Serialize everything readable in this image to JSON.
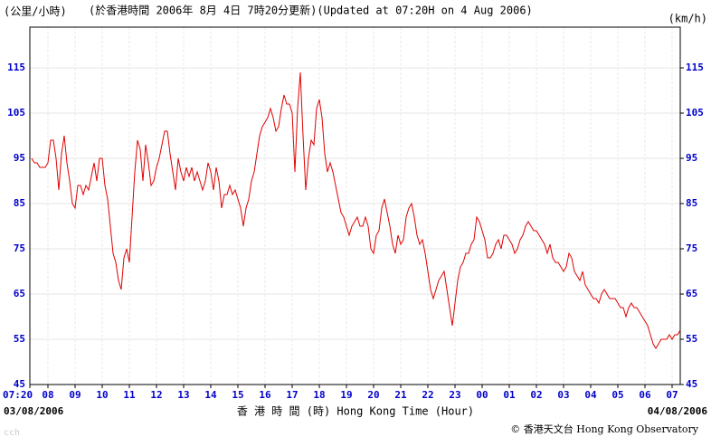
{
  "chart_data": {
    "type": "line",
    "unit_left": "(公里/小時)",
    "title": "(於香港時間 2006年 8月 4日 7時20分更新)(Updated at 07:20H on 4 Aug 2006)",
    "unit_right": "(km/h)",
    "x_label": "香 港 時 間 (時)  Hong Kong Time (Hour)",
    "start_date": "03/08/2006",
    "end_date": "04/08/2006",
    "credit": "© 香港天文台 Hong Kong Observatory",
    "footer": "cch",
    "color": "#e00000",
    "grid": true,
    "xlim": [
      7.333,
      31.3
    ],
    "xticks": [
      {
        "value": 7.333,
        "label": "07:20"
      },
      {
        "value": 8,
        "label": "08"
      },
      {
        "value": 9,
        "label": "09"
      },
      10,
      11,
      12,
      13,
      14,
      15,
      16,
      17,
      18,
      19,
      20,
      21,
      22,
      23,
      {
        "value": 24,
        "label": "00"
      },
      {
        "value": 25,
        "label": "01"
      },
      {
        "value": 26,
        "label": "02"
      },
      {
        "value": 27,
        "label": "03"
      },
      {
        "value": 28,
        "label": "04"
      },
      {
        "value": 29,
        "label": "05"
      },
      {
        "value": 30,
        "label": "06"
      },
      {
        "value": 31,
        "label": "07"
      }
    ],
    "ylim": [
      45,
      124
    ],
    "yticks": [
      45,
      55,
      65,
      75,
      85,
      95,
      105,
      115
    ],
    "y2lim": [
      45,
      124
    ],
    "y2ticks": [
      45,
      55,
      65,
      75,
      85,
      95,
      105,
      115
    ],
    "x": [
      7.4,
      7.5,
      7.6,
      7.7,
      7.8,
      7.9,
      8.0,
      8.1,
      8.2,
      8.3,
      8.4,
      8.5,
      8.6,
      8.7,
      8.8,
      8.9,
      9.0,
      9.1,
      9.2,
      9.3,
      9.4,
      9.5,
      9.6,
      9.7,
      9.8,
      9.9,
      10.0,
      10.1,
      10.2,
      10.3,
      10.4,
      10.5,
      10.6,
      10.7,
      10.8,
      10.9,
      11.0,
      11.1,
      11.2,
      11.3,
      11.4,
      11.5,
      11.6,
      11.7,
      11.8,
      11.9,
      12.0,
      12.1,
      12.2,
      12.3,
      12.4,
      12.5,
      12.6,
      12.7,
      12.8,
      12.9,
      13.0,
      13.1,
      13.2,
      13.3,
      13.4,
      13.5,
      13.6,
      13.7,
      13.8,
      13.9,
      14.0,
      14.1,
      14.2,
      14.3,
      14.4,
      14.5,
      14.6,
      14.7,
      14.8,
      14.9,
      15.0,
      15.1,
      15.2,
      15.3,
      15.4,
      15.5,
      15.6,
      15.7,
      15.8,
      15.9,
      16.0,
      16.1,
      16.2,
      16.3,
      16.4,
      16.5,
      16.6,
      16.7,
      16.8,
      16.9,
      17.0,
      17.1,
      17.2,
      17.3,
      17.4,
      17.5,
      17.6,
      17.7,
      17.8,
      17.9,
      18.0,
      18.1,
      18.2,
      18.3,
      18.4,
      18.5,
      18.6,
      18.7,
      18.8,
      18.9,
      19.0,
      19.1,
      19.2,
      19.3,
      19.4,
      19.5,
      19.6,
      19.7,
      19.8,
      19.9,
      20.0,
      20.1,
      20.2,
      20.3,
      20.4,
      20.5,
      20.6,
      20.7,
      20.8,
      20.9,
      21.0,
      21.1,
      21.2,
      21.3,
      21.4,
      21.5,
      21.6,
      21.7,
      21.8,
      21.9,
      22.0,
      22.1,
      22.2,
      22.3,
      22.4,
      22.5,
      22.6,
      22.7,
      22.8,
      22.9,
      23.0,
      23.1,
      23.2,
      23.3,
      23.4,
      23.5,
      23.6,
      23.7,
      23.8,
      23.9,
      24.0,
      24.1,
      24.2,
      24.3,
      24.4,
      24.5,
      24.6,
      24.7,
      24.8,
      24.9,
      25.0,
      25.1,
      25.2,
      25.3,
      25.4,
      25.5,
      25.6,
      25.7,
      25.8,
      25.9,
      26.0,
      26.1,
      26.2,
      26.3,
      26.4,
      26.5,
      26.6,
      26.7,
      26.8,
      26.9,
      27.0,
      27.1,
      27.2,
      27.3,
      27.4,
      27.5,
      27.6,
      27.7,
      27.8,
      27.9,
      28.0,
      28.1,
      28.2,
      28.3,
      28.4,
      28.5,
      28.6,
      28.7,
      28.8,
      28.9,
      29.0,
      29.1,
      29.2,
      29.3,
      29.4,
      29.5,
      29.6,
      29.7,
      29.8,
      29.9,
      30.0,
      30.1,
      30.2,
      30.3,
      30.4,
      30.5,
      30.6,
      30.7,
      30.8,
      30.9,
      31.0,
      31.1,
      31.2,
      31.3
    ],
    "values": [
      95,
      94,
      94,
      93,
      93,
      93,
      94,
      99,
      99,
      95,
      88,
      96,
      100,
      94,
      90,
      85,
      84,
      89,
      89,
      87,
      89,
      88,
      91,
      94,
      90,
      95,
      95,
      89,
      86,
      80,
      74,
      72,
      68,
      66,
      73,
      75,
      72,
      82,
      92,
      99,
      97,
      90,
      98,
      94,
      89,
      90,
      93,
      95,
      98,
      101,
      101,
      96,
      92,
      88,
      95,
      92,
      90,
      93,
      91,
      93,
      90,
      92,
      90,
      88,
      90,
      94,
      92,
      88,
      93,
      90,
      84,
      87,
      87,
      89,
      87,
      88,
      86,
      84,
      80,
      84,
      86,
      90,
      92,
      96,
      100,
      102,
      103,
      104,
      106,
      104,
      101,
      102,
      106,
      109,
      107,
      107,
      105,
      92,
      106,
      114,
      100,
      88,
      95,
      99,
      98,
      106,
      108,
      104,
      96,
      92,
      94,
      92,
      89,
      86,
      83,
      82,
      80,
      78,
      80,
      81,
      82,
      80,
      80,
      82,
      80,
      75,
      74,
      78,
      79,
      84,
      86,
      83,
      80,
      76,
      74,
      78,
      76,
      77,
      82,
      84,
      85,
      82,
      78,
      76,
      77,
      74,
      70,
      66,
      64,
      66,
      68,
      69,
      70,
      66,
      62,
      58,
      63,
      68,
      71,
      72,
      74,
      74,
      76,
      77,
      82,
      81,
      79,
      77,
      73,
      73,
      74,
      76,
      77,
      75,
      78,
      78,
      77,
      76,
      74,
      75,
      77,
      78,
      80,
      81,
      80,
      79,
      79,
      78,
      77,
      76,
      74,
      76,
      73,
      72,
      72,
      71,
      70,
      71,
      74,
      73,
      70,
      69,
      68,
      70,
      67,
      66,
      65,
      64,
      64,
      63,
      65,
      66,
      65,
      64,
      64,
      64,
      63,
      62,
      62,
      60,
      62,
      63,
      62,
      62,
      61,
      60,
      59,
      58,
      56,
      54,
      53,
      54,
      55,
      55,
      55,
      56,
      55,
      56,
      56,
      57
    ]
  }
}
